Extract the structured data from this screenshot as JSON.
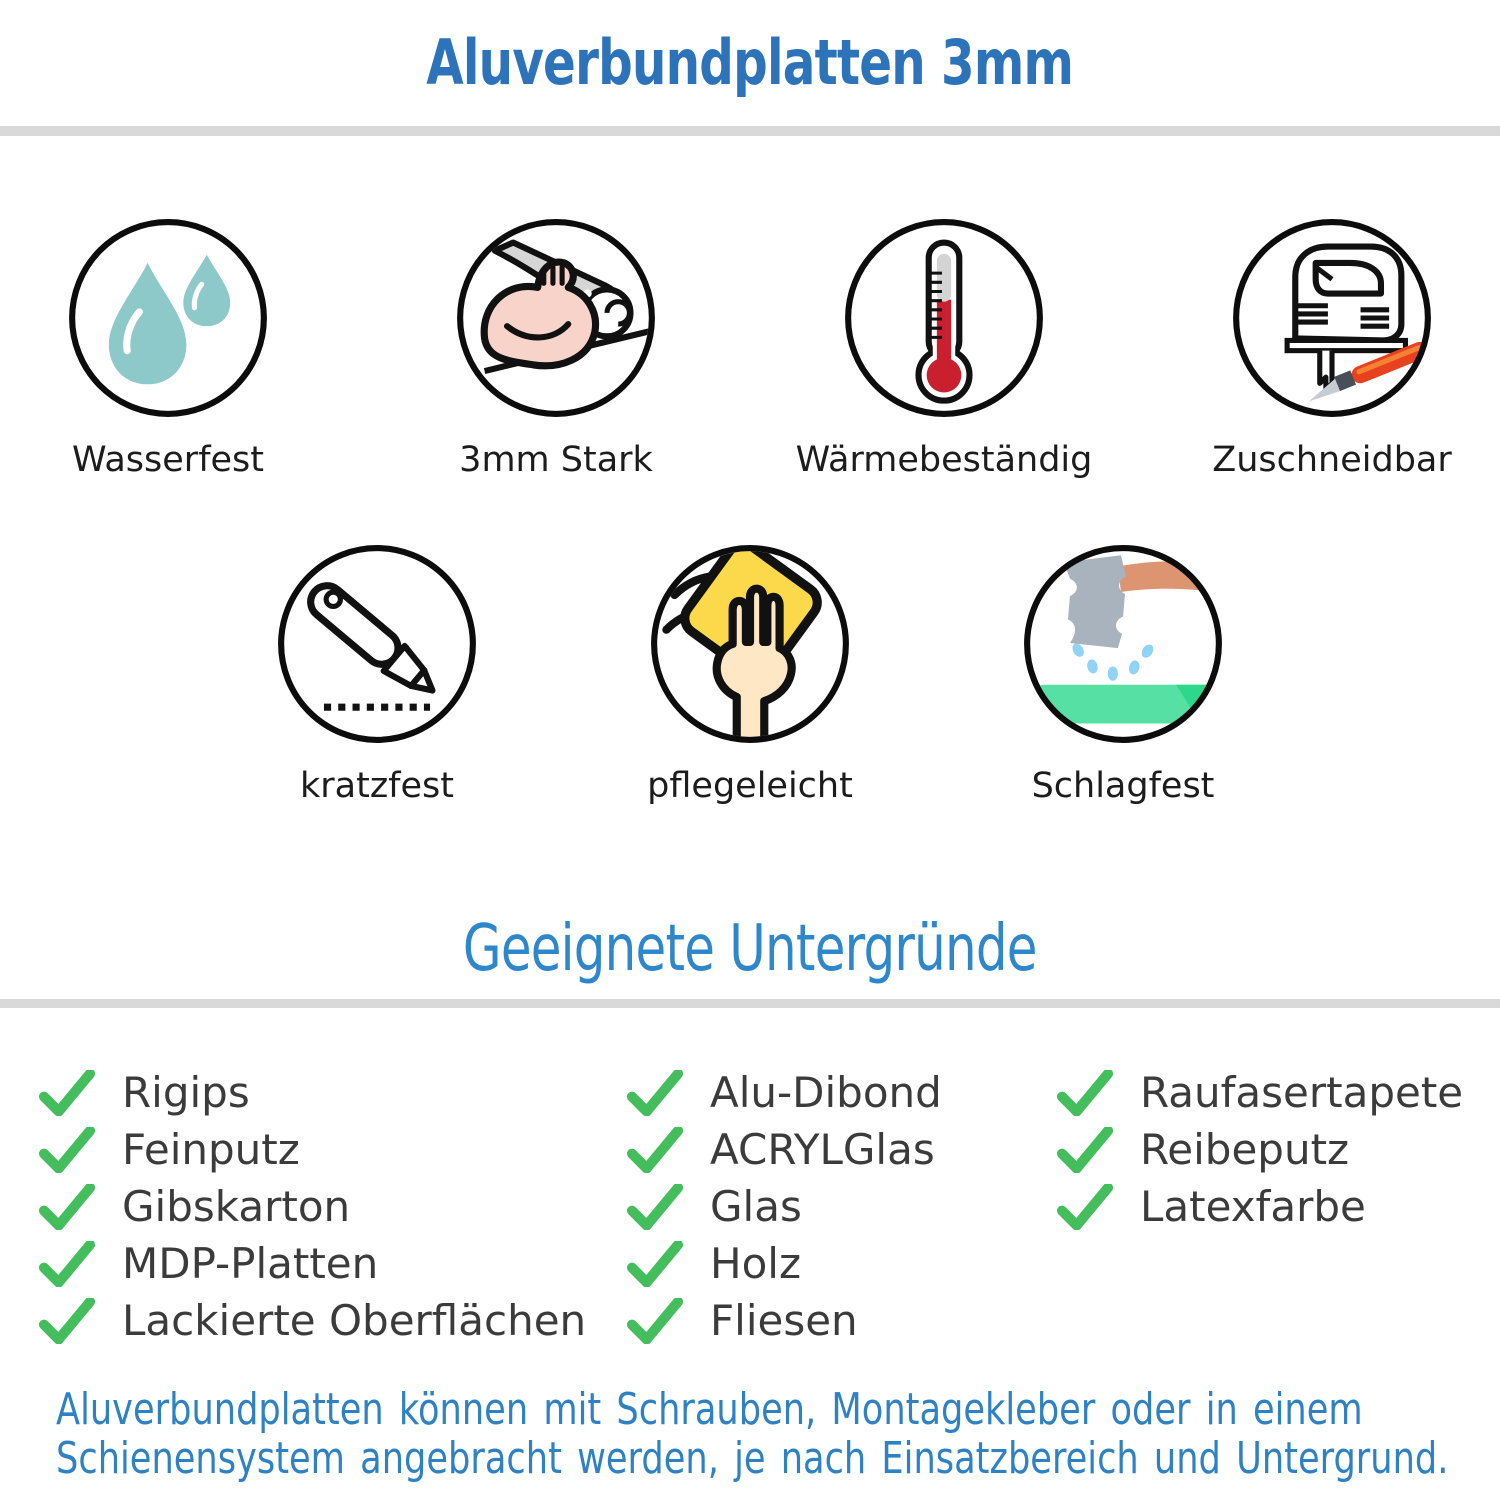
{
  "header": {
    "title": "Aluverbundplatten 3mm"
  },
  "features": [
    {
      "label": "Wasserfest",
      "icon": "water-drops-icon"
    },
    {
      "label": "3mm Stark",
      "icon": "muscle-arm-icon"
    },
    {
      "label": "Wärmebeständig",
      "icon": "thermometer-icon"
    },
    {
      "label": "Zuschneidbar",
      "icon": "jigsaw-icon"
    },
    {
      "label": "kratzfest",
      "icon": "utility-knife-icon"
    },
    {
      "label": "pflegeleicht",
      "icon": "cleaning-hand-icon"
    },
    {
      "label": "Schlagfest",
      "icon": "hammer-icon"
    }
  ],
  "substrates": {
    "title": "Geeignete Untergründe",
    "check_icon": "check-icon",
    "columns": [
      {
        "items": [
          "Rigips",
          "Feinputz",
          "Gibskarton",
          "MDP-Platten",
          "Lackierte Oberflächen"
        ]
      },
      {
        "items": [
          "Alu-Dibond",
          "ACRYLGlas",
          "Glas",
          "Holz",
          "Fliesen"
        ]
      },
      {
        "items": [
          "Raufasertapete",
          "Reibeputz",
          "Latexfarbe"
        ]
      }
    ]
  },
  "footer": {
    "lines": [
      "Aluverbundplatten können mit Schrauben, Montagekleber oder in einem",
      "Schienensystem angebracht werden, je nach Einsatzbereich und Untergrund."
    ]
  },
  "colors": {
    "title_blue": "#2d73b9",
    "subtitle_blue": "#2e87ca",
    "footer_blue": "#2e82c4",
    "divider_gray": "#d9d9d9",
    "check_green": "#44be5c",
    "drop_teal": "#8ec9c9",
    "thermometer_red": "#ca1f2e",
    "cloth_yellow": "#fcd84b",
    "skin": "#fde7c4",
    "hammer_gray": "#a9b3bd",
    "handle_salmon": "#dd9470",
    "surface_mint": "#57e0a3",
    "knife_red": "#e8411f"
  }
}
